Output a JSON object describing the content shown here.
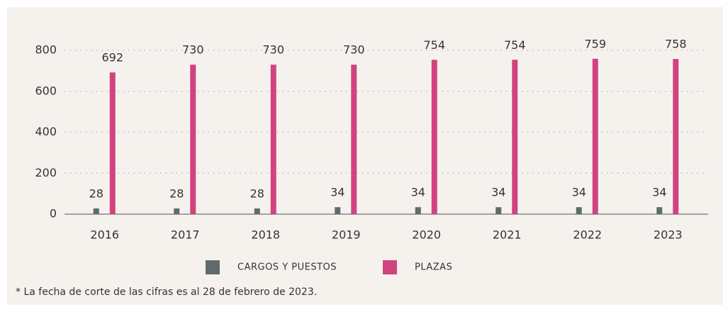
{
  "chart_data": {
    "type": "bar",
    "categories": [
      "2016",
      "2017",
      "2018",
      "2019",
      "2020",
      "2021",
      "2022",
      "2023"
    ],
    "series": [
      {
        "name": "CARGOS Y PUESTOS",
        "color": "#5f6b6d",
        "values": [
          28,
          28,
          28,
          34,
          34,
          34,
          34,
          34
        ]
      },
      {
        "name": "PLAZAS",
        "color": "#d1437f",
        "values": [
          692,
          730,
          730,
          730,
          754,
          754,
          759,
          758
        ]
      }
    ],
    "ylim": [
      0,
      800
    ],
    "yticks": [
      0,
      200,
      400,
      600,
      800
    ],
    "grid": true,
    "note": "* La fecha de corte de las cifras es al 28 de febrero de 2023."
  }
}
